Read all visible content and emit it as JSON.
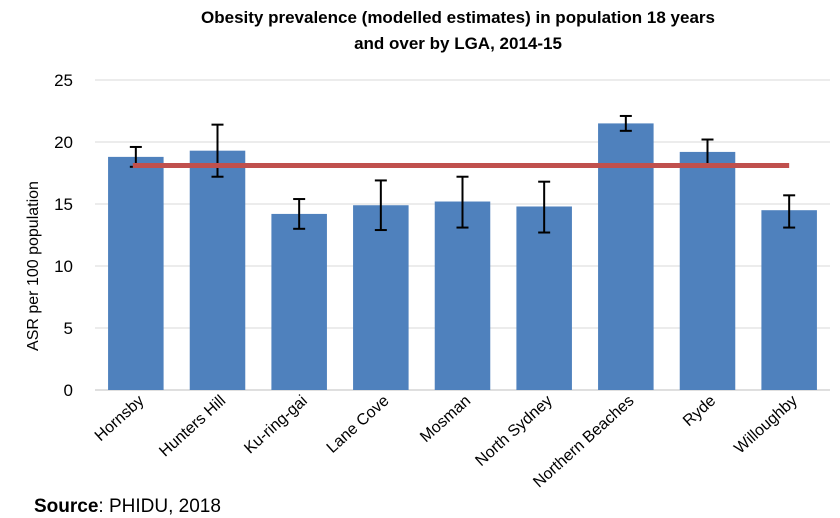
{
  "source": {
    "label": "Source",
    "text": ": PHIDU, 2018"
  },
  "chart_data": {
    "type": "bar",
    "title": [
      "Obesity prevalence (modelled estimates) in population 18 years",
      "and over by LGA, 2014-15"
    ],
    "xlabel": "",
    "ylabel": "ASR per 100 population",
    "ylim": [
      0,
      25
    ],
    "yticks": [
      0,
      5,
      10,
      15,
      20,
      25
    ],
    "grid": true,
    "categories": [
      "Hornsby",
      "Hunters Hill",
      "Ku-ring-gai",
      "Lane Cove",
      "Mosman",
      "North Sydney",
      "Northern Beaches",
      "Ryde",
      "Willoughby"
    ],
    "values": [
      18.8,
      19.3,
      14.2,
      14.9,
      15.2,
      14.8,
      21.5,
      19.2,
      14.5
    ],
    "error_low": [
      18.0,
      17.2,
      13.0,
      12.9,
      13.1,
      12.7,
      20.9,
      18.2,
      13.1
    ],
    "error_high": [
      19.6,
      21.4,
      15.4,
      16.9,
      17.2,
      16.8,
      22.1,
      20.2,
      15.7
    ],
    "reference_value": 18.1,
    "colors": {
      "bar": "#4f81bd",
      "reference": "#c0504d",
      "grid": "#d9d9d9",
      "error": "#000000"
    }
  }
}
